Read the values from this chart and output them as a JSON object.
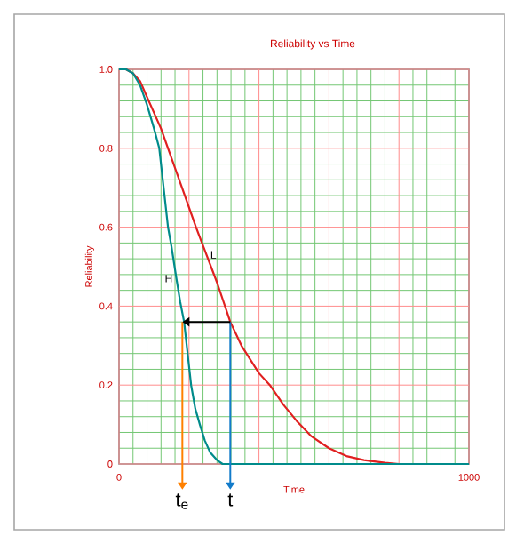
{
  "chart_data": {
    "type": "line",
    "title": "Reliability vs Time",
    "xlabel": "Time",
    "ylabel": "Reliability",
    "xlim": [
      0,
      1000
    ],
    "ylim": [
      0,
      1.0
    ],
    "xticks": [
      0,
      {
        "value": 40,
        "label": null
      },
      {
        "value": 80,
        "label": null
      },
      {
        "value": 120,
        "label": null
      },
      {
        "value": 160,
        "label": null
      },
      {
        "value": 200,
        "label": null
      },
      {
        "value": 240,
        "label": null
      },
      {
        "value": 280,
        "label": null
      },
      {
        "value": 320,
        "label": null
      },
      {
        "value": 360,
        "label": null
      },
      {
        "value": 400,
        "label": null
      },
      {
        "value": 440,
        "label": null
      },
      {
        "value": 480,
        "label": null
      },
      {
        "value": 520,
        "label": null
      },
      {
        "value": 560,
        "label": null
      },
      {
        "value": 600,
        "label": null
      },
      {
        "value": 640,
        "label": null
      },
      {
        "value": 680,
        "label": null
      },
      {
        "value": 720,
        "label": null
      },
      {
        "value": 760,
        "label": null
      },
      {
        "value": 800,
        "label": null
      },
      {
        "value": 840,
        "label": null
      },
      {
        "value": 880,
        "label": null
      },
      {
        "value": 920,
        "label": null
      },
      {
        "value": 960,
        "label": null
      },
      1000
    ],
    "yticks": [
      0,
      {
        "value": 0.04,
        "label": null
      },
      {
        "value": 0.08,
        "label": null
      },
      {
        "value": 0.12,
        "label": null
      },
      {
        "value": 0.16,
        "label": null
      },
      0.2,
      {
        "value": 0.24,
        "label": null
      },
      {
        "value": 0.28,
        "label": null
      },
      {
        "value": 0.32,
        "label": null
      },
      {
        "value": 0.36,
        "label": null
      },
      0.4,
      {
        "value": 0.44,
        "label": null
      },
      {
        "value": 0.48,
        "label": null
      },
      {
        "value": 0.52,
        "label": null
      },
      {
        "value": 0.56,
        "label": null
      },
      0.6,
      {
        "value": 0.64,
        "label": null
      },
      {
        "value": 0.68,
        "label": null
      },
      {
        "value": 0.72,
        "label": null
      },
      {
        "value": 0.76,
        "label": null
      },
      0.8,
      {
        "value": 0.84,
        "label": null
      },
      {
        "value": 0.88,
        "label": null
      },
      {
        "value": 0.92,
        "label": null
      },
      {
        "value": 0.96,
        "label": null
      },
      {
        "value": 1.0,
        "label": "1.0"
      }
    ],
    "grid": true,
    "legend": false,
    "marker": "none",
    "line_style": "solid",
    "series": [
      {
        "name": "L",
        "color": "#e02020",
        "x": [
          0,
          20,
          40,
          60,
          80,
          100,
          120,
          140,
          160,
          180,
          200,
          220,
          250,
          280,
          318,
          350,
          400,
          431,
          470,
          507,
          550,
          600,
          650,
          700,
          760,
          800,
          1000
        ],
        "values": [
          1.0,
          1.0,
          0.99,
          0.97,
          0.93,
          0.89,
          0.85,
          0.8,
          0.75,
          0.7,
          0.65,
          0.6,
          0.53,
          0.46,
          0.36,
          0.3,
          0.23,
          0.2,
          0.15,
          0.11,
          0.07,
          0.04,
          0.02,
          0.01,
          0.003,
          0,
          0
        ]
      },
      {
        "name": "H",
        "color": "#008b8b",
        "x": [
          0,
          20,
          40,
          60,
          80,
          100,
          115,
          130,
          140,
          150,
          164,
          175,
          186,
          196,
          206,
          218,
          231,
          245,
          260,
          280,
          296,
          320,
          1000
        ],
        "values": [
          1.0,
          1.0,
          0.99,
          0.96,
          0.91,
          0.85,
          0.8,
          0.68,
          0.6,
          0.55,
          0.47,
          0.41,
          0.36,
          0.28,
          0.2,
          0.14,
          0.1,
          0.06,
          0.03,
          0.01,
          0,
          0,
          0
        ]
      }
    ],
    "annotations": [
      {
        "text": "t$_{e}$",
        "x": 181,
        "y": 0.36
      },
      {
        "text": "t",
        "x": 318,
        "y": 0.36
      }
    ]
  }
}
